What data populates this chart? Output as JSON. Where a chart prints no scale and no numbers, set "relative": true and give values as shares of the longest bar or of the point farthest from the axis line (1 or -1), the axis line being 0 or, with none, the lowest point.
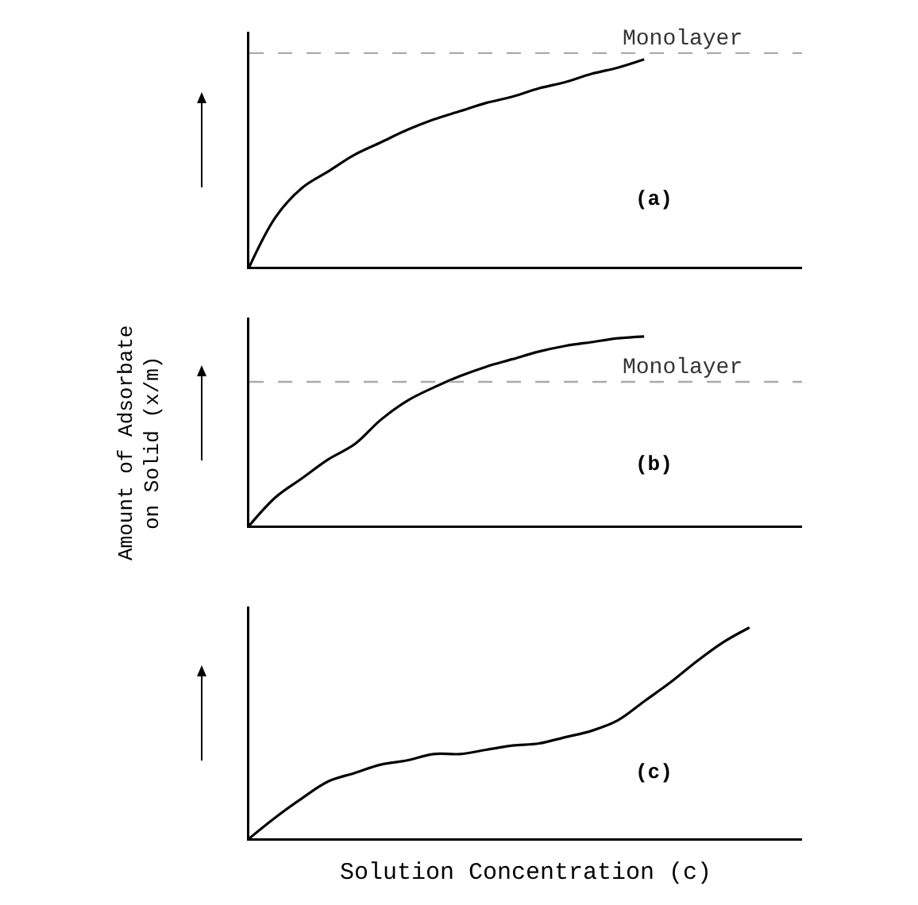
{
  "chart_data": [
    {
      "type": "line",
      "relative": true,
      "categories": [
        null,
        null,
        null,
        null,
        null,
        null,
        null,
        null,
        null,
        null,
        null,
        null,
        null,
        null,
        null,
        null,
        null,
        null,
        null,
        null,
        null,
        null
      ],
      "series": [
        {
          "color": "#000000",
          "values": [
            0,
            0.24,
            0.38,
            0.46,
            0.54,
            0.6,
            0.66,
            0.71,
            0.75,
            0.79,
            0.82,
            0.86,
            0.89,
            0.93,
            0.96,
            1.0,
            null,
            null,
            null,
            null,
            null,
            null
          ]
        }
      ],
      "ref_lines": [
        {
          "axis": "y",
          "value": 1.03,
          "label": "Monolayer",
          "color": "#aaaaaa",
          "line_style": "dashed"
        }
      ],
      "annotations": [
        "(a)"
      ]
    },
    {
      "type": "line",
      "relative": true,
      "ylabel": "Amount of Adsorbate\non Solid (x/m)",
      "categories": [
        null,
        null,
        null,
        null,
        null,
        null,
        null,
        null,
        null,
        null,
        null,
        null,
        null,
        null,
        null,
        null,
        null,
        null,
        null,
        null,
        null,
        null
      ],
      "series": [
        {
          "color": "#000000",
          "values": [
            0,
            0.15,
            0.25,
            0.35,
            0.43,
            0.56,
            0.66,
            0.73,
            0.79,
            0.84,
            0.88,
            0.92,
            0.95,
            0.97,
            0.99,
            1.0,
            null,
            null,
            null,
            null,
            null,
            null
          ]
        }
      ],
      "ref_lines": [
        {
          "axis": "y",
          "value": 0.76,
          "label": "Monolayer",
          "color": "#aaaaaa",
          "line_style": "dashed"
        }
      ],
      "annotations": [
        "(b)"
      ]
    },
    {
      "type": "line",
      "relative": true,
      "xlabel": "Solution Concentration (c)",
      "categories": [
        null,
        null,
        null,
        null,
        null,
        null,
        null,
        null,
        null,
        null,
        null,
        null,
        null,
        null,
        null,
        null,
        null,
        null,
        null,
        null,
        null,
        null
      ],
      "series": [
        {
          "color": "#000000",
          "values": [
            0,
            0.1,
            0.19,
            0.27,
            0.31,
            0.35,
            0.37,
            0.4,
            0.4,
            0.42,
            0.44,
            0.45,
            0.48,
            0.51,
            0.56,
            0.65,
            0.74,
            0.84,
            0.93,
            1.0,
            null,
            null
          ]
        }
      ],
      "annotations": [
        "(c)"
      ]
    }
  ]
}
